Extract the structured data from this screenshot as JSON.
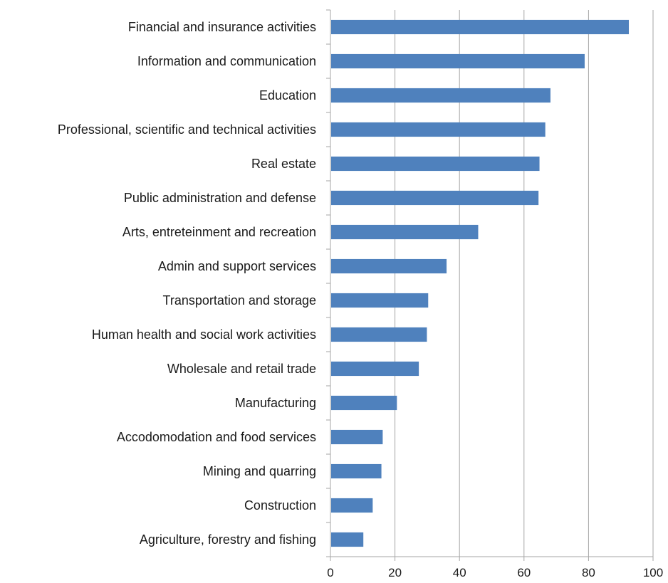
{
  "chart_data": {
    "type": "bar",
    "orientation": "horizontal",
    "categories": [
      "Financial and insurance activities",
      "Information and communication",
      "Education",
      "Professional, scientific and technical activities",
      "Real estate",
      "Public administration and defense",
      "Arts, entreteinment and recreation",
      "Admin and support services",
      "Transportation and storage",
      "Human health and social work activities",
      "Wholesale and retail trade",
      "Manufacturing",
      "Accodomodation and food services",
      "Mining and quarring",
      "Construction",
      "Agriculture, forestry and fishing"
    ],
    "values": [
      92.5,
      78.8,
      68.2,
      66.6,
      64.8,
      64.5,
      45.8,
      36.0,
      30.3,
      29.9,
      27.4,
      20.6,
      16.2,
      15.8,
      13.1,
      10.2
    ],
    "xticks": [
      "0",
      "20",
      "40",
      "60",
      "80",
      "100"
    ],
    "xlim": [
      0,
      100
    ],
    "title": "",
    "xlabel": "",
    "ylabel": "",
    "grid": "vertical",
    "legend": "none",
    "bar_color": "#4F81BD",
    "grid_color": "#a6a6a6"
  }
}
